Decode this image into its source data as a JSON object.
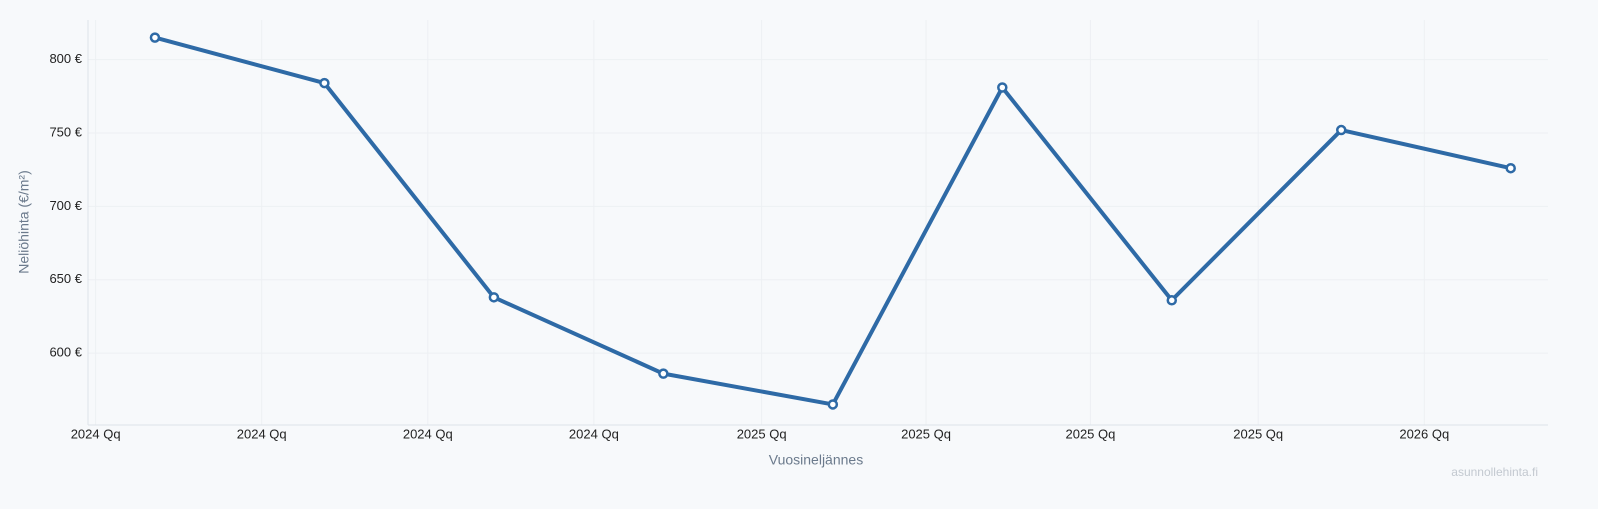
{
  "chart_data": {
    "type": "line",
    "y_label": "Neliöhinta (€/m²)",
    "x_label": "Vuosineljännes",
    "watermark": "asunnollehinta.fi",
    "x": [
      0,
      1,
      2,
      3,
      4,
      5,
      6,
      7,
      8
    ],
    "values": [
      815,
      784,
      638,
      586,
      565,
      781,
      636,
      752,
      726
    ],
    "color": "#2e6aa6",
    "xlim": [
      -0.395,
      8.22
    ],
    "xticks": [
      {
        "value": -0.35,
        "label": "2024 Qq"
      },
      {
        "value": 0.63,
        "label": "2024 Qq"
      },
      {
        "value": 1.61,
        "label": "2024 Qq"
      },
      {
        "value": 2.59,
        "label": "2024 Qq"
      },
      {
        "value": 3.58,
        "label": "2025 Qq"
      },
      {
        "value": 4.55,
        "label": "2025 Qq"
      },
      {
        "value": 5.52,
        "label": "2025 Qq"
      },
      {
        "value": 6.51,
        "label": "2025 Qq"
      },
      {
        "value": 7.49,
        "label": "2026 Qq"
      }
    ],
    "ylim": [
      551,
      827
    ],
    "yticks": [
      {
        "value": 600,
        "label": "600 €"
      },
      {
        "value": 650,
        "label": "650 €"
      },
      {
        "value": 700,
        "label": "700 €"
      },
      {
        "value": 750,
        "label": "750 €"
      },
      {
        "value": 800,
        "label": "800 €"
      }
    ],
    "grid": true
  }
}
